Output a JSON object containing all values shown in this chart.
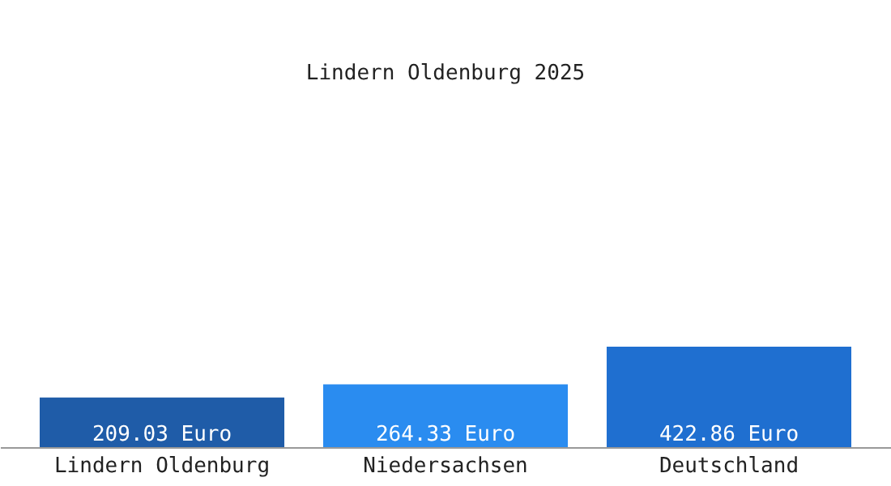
{
  "chart_data": {
    "type": "bar",
    "title": "Lindern Oldenburg 2025",
    "categories": [
      "Lindern Oldenburg",
      "Niedersachsen",
      "Deutschland"
    ],
    "values": [
      209.03,
      264.33,
      422.86
    ],
    "colors": [
      "#1f5ca8",
      "#2a8cf0",
      "#1f6fd0"
    ],
    "value_labels": [
      "209.03 Euro",
      "264.33 Euro",
      "422.86 Euro"
    ]
  }
}
